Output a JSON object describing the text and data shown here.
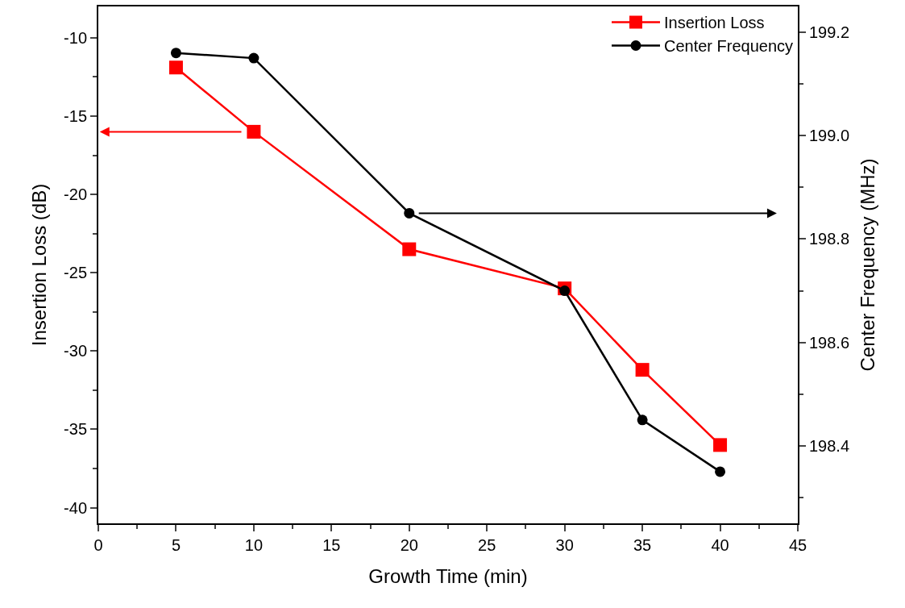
{
  "chart_data": {
    "type": "line",
    "xlabel": "Growth Time (min)",
    "ylabel": "Insertion Loss (dB)",
    "y2label": "Center Frequency (MHz)",
    "x": [
      5,
      10,
      20,
      30,
      35,
      40
    ],
    "series": [
      {
        "name": "Insertion Loss",
        "color": "#ff0000",
        "marker": "square",
        "values": [
          -11.9,
          -16.0,
          -23.5,
          -26.0,
          -31.2,
          -36.0
        ]
      },
      {
        "name": "Center Frequency",
        "color": "#000000",
        "marker": "circle",
        "axis": "y2",
        "values": [
          199.16,
          199.15,
          198.85,
          198.7,
          198.45,
          198.35
        ]
      }
    ],
    "xlim": [
      0,
      45
    ],
    "xticks": [
      0,
      5,
      10,
      15,
      20,
      25,
      30,
      35,
      40,
      45
    ],
    "ylim": [
      -41,
      -8
    ],
    "yticks": [
      -10,
      -15,
      -20,
      -25,
      -30,
      -35,
      -40
    ],
    "y2lim": [
      198.25,
      199.25
    ],
    "y2ticks": [
      {
        "value": 198.4,
        "label": "198.4"
      },
      {
        "value": 198.6,
        "label": "198.6"
      },
      {
        "value": 198.8,
        "label": "198.8"
      },
      {
        "value": 199.0,
        "label": "199.0"
      },
      {
        "value": 199.2,
        "label": "199.2"
      }
    ],
    "grid": false,
    "legend": "top right",
    "line_style": "solid"
  }
}
